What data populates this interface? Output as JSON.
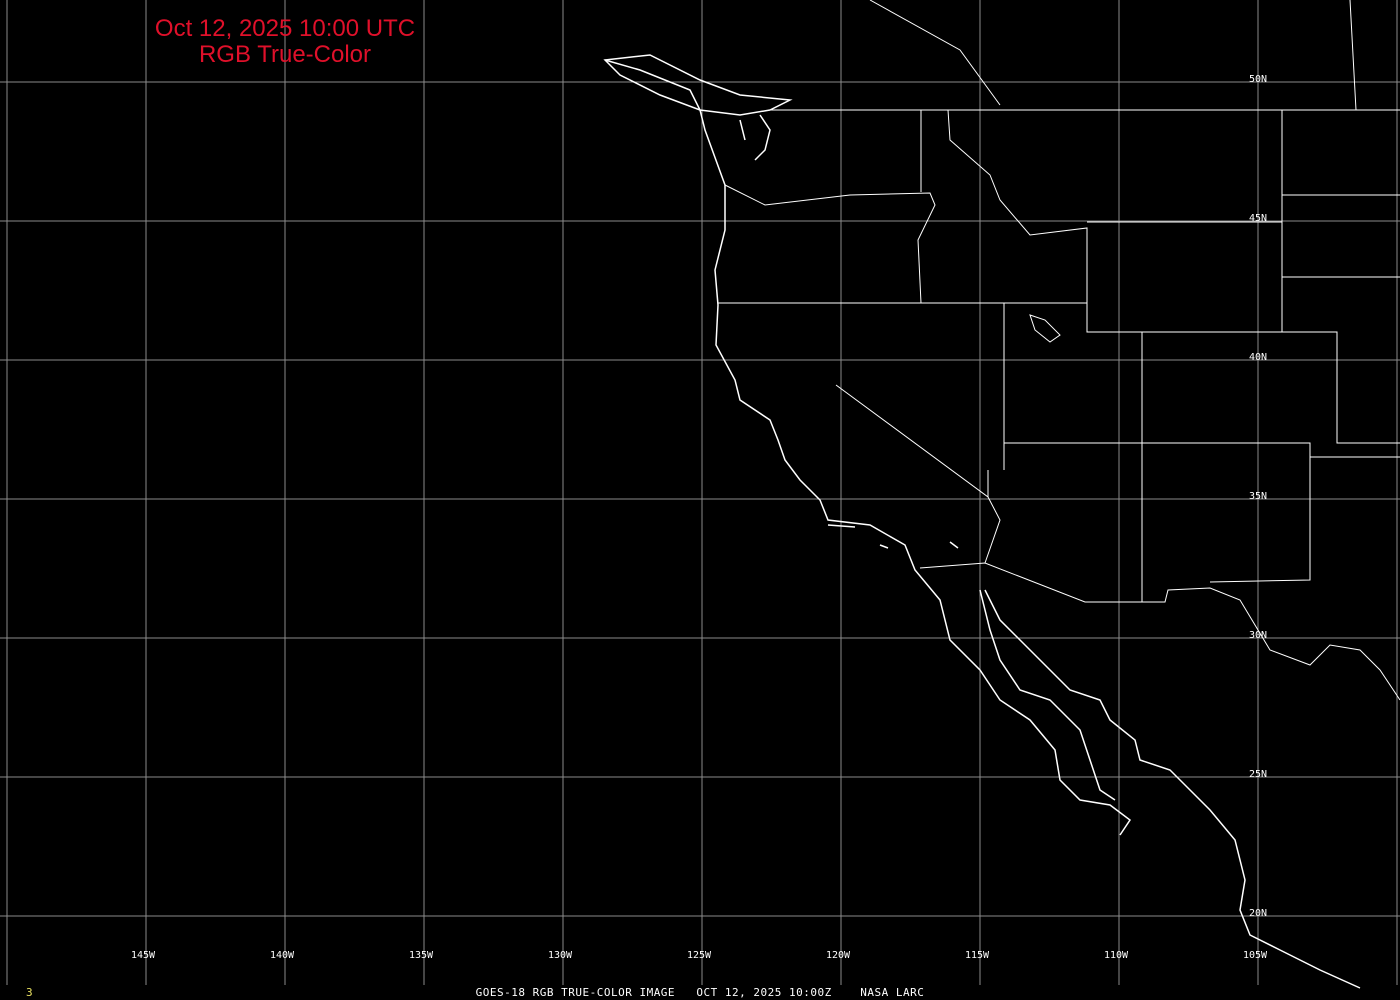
{
  "title": {
    "line1": "Oct 12, 2025 10:00 UTC",
    "line2": "RGB True-Color",
    "color": "#e0102a"
  },
  "latitude_labels": [
    "50N",
    "45N",
    "40N",
    "35N",
    "30N",
    "25N",
    "20N"
  ],
  "longitude_labels": [
    "145W",
    "140W",
    "135W",
    "130W",
    "125W",
    "120W",
    "115W",
    "110W",
    "105W"
  ],
  "footer": {
    "caption": "GOES-18 RGB TRUE-COLOR IMAGE   OCT 12, 2025 10:00Z    NASA LARC",
    "frame_number": "3"
  },
  "colors": {
    "background": "#000000",
    "grid": "#8a8a8a",
    "coastline": "#ffffff"
  }
}
